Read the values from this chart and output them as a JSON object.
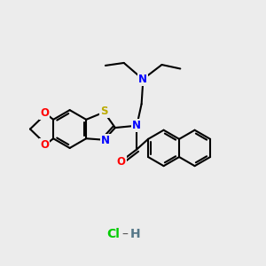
{
  "background_color": "#ececec",
  "bond_color": "#000000",
  "atom_colors": {
    "N": "#0000ff",
    "O": "#ff0000",
    "S": "#bbaa00",
    "Cl": "#00cc00",
    "H_hcl": "#557788",
    "C": "#000000"
  },
  "lw": 1.5
}
